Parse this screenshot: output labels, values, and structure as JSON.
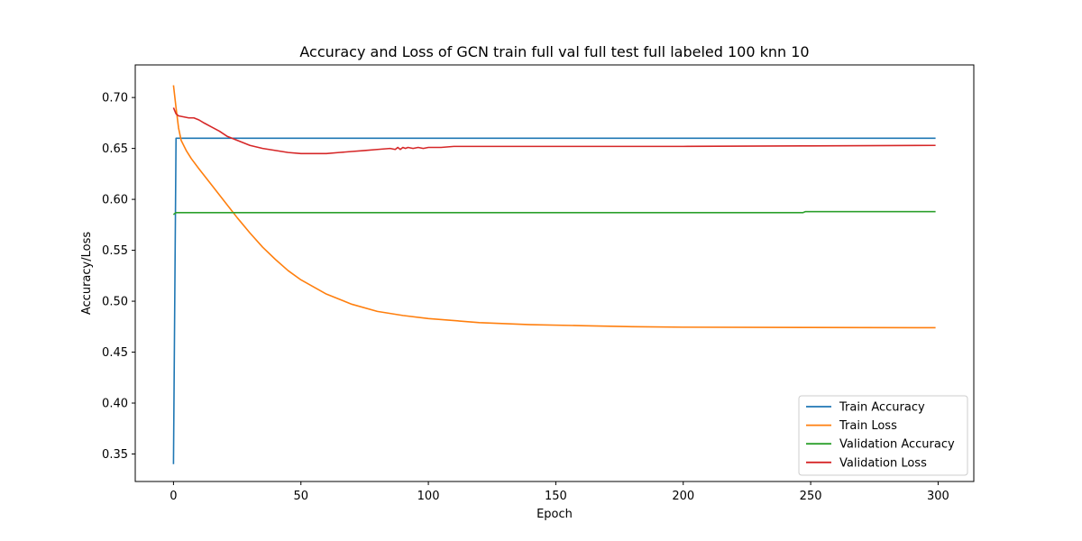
{
  "chart_data": {
    "type": "line",
    "title": "Accuracy and Loss of GCN train full val full test full labeled 100 knn 10",
    "xlabel": "Epoch",
    "ylabel": "Accuracy/Loss",
    "xlim": [
      -15,
      314
    ],
    "ylim": [
      0.323,
      0.732
    ],
    "xticks": [
      0,
      50,
      100,
      150,
      200,
      250,
      300
    ],
    "xtick_labels": [
      "0",
      "50",
      "100",
      "150",
      "200",
      "250",
      "300"
    ],
    "yticks": [
      0.35,
      0.4,
      0.45,
      0.5,
      0.55,
      0.6,
      0.65,
      0.7
    ],
    "ytick_labels": [
      "0.35",
      "0.40",
      "0.45",
      "0.50",
      "0.55",
      "0.60",
      "0.65",
      "0.70"
    ],
    "grid": false,
    "legend_position": "lower-right",
    "series": [
      {
        "name": "Train Accuracy",
        "color": "#1f77b4",
        "points": [
          [
            0,
            0.34
          ],
          [
            1,
            0.66
          ],
          [
            299,
            0.66
          ]
        ]
      },
      {
        "name": "Train Loss",
        "color": "#ff7f0e",
        "points": [
          [
            0,
            0.712
          ],
          [
            1,
            0.69
          ],
          [
            2,
            0.67
          ],
          [
            3,
            0.658
          ],
          [
            5,
            0.648
          ],
          [
            7,
            0.64
          ],
          [
            10,
            0.63
          ],
          [
            15,
            0.614
          ],
          [
            20,
            0.598
          ],
          [
            25,
            0.582
          ],
          [
            30,
            0.567
          ],
          [
            35,
            0.553
          ],
          [
            40,
            0.541
          ],
          [
            45,
            0.53
          ],
          [
            50,
            0.521
          ],
          [
            60,
            0.507
          ],
          [
            70,
            0.497
          ],
          [
            80,
            0.49
          ],
          [
            90,
            0.486
          ],
          [
            100,
            0.483
          ],
          [
            120,
            0.479
          ],
          [
            140,
            0.477
          ],
          [
            160,
            0.476
          ],
          [
            180,
            0.475
          ],
          [
            200,
            0.4745
          ],
          [
            250,
            0.4742
          ],
          [
            299,
            0.474
          ]
        ]
      },
      {
        "name": "Validation Accuracy",
        "color": "#2ca02c",
        "points": [
          [
            0,
            0.585
          ],
          [
            1,
            0.587
          ],
          [
            247,
            0.587
          ],
          [
            248,
            0.588
          ],
          [
            299,
            0.588
          ]
        ]
      },
      {
        "name": "Validation Loss",
        "color": "#d62728",
        "points": [
          [
            0,
            0.69
          ],
          [
            1,
            0.684
          ],
          [
            2,
            0.682
          ],
          [
            4,
            0.681
          ],
          [
            6,
            0.68
          ],
          [
            8,
            0.68
          ],
          [
            10,
            0.678
          ],
          [
            12,
            0.675
          ],
          [
            15,
            0.671
          ],
          [
            18,
            0.667
          ],
          [
            21,
            0.662
          ],
          [
            25,
            0.658
          ],
          [
            30,
            0.653
          ],
          [
            35,
            0.65
          ],
          [
            40,
            0.648
          ],
          [
            45,
            0.646
          ],
          [
            50,
            0.645
          ],
          [
            55,
            0.645
          ],
          [
            60,
            0.645
          ],
          [
            65,
            0.646
          ],
          [
            70,
            0.647
          ],
          [
            75,
            0.648
          ],
          [
            80,
            0.649
          ],
          [
            85,
            0.65
          ],
          [
            87,
            0.649
          ],
          [
            88,
            0.651
          ],
          [
            89,
            0.649
          ],
          [
            90,
            0.651
          ],
          [
            91,
            0.65
          ],
          [
            92,
            0.651
          ],
          [
            94,
            0.65
          ],
          [
            96,
            0.651
          ],
          [
            98,
            0.65
          ],
          [
            100,
            0.651
          ],
          [
            105,
            0.651
          ],
          [
            110,
            0.652
          ],
          [
            120,
            0.652
          ],
          [
            150,
            0.652
          ],
          [
            180,
            0.652
          ],
          [
            200,
            0.652
          ],
          [
            250,
            0.6525
          ],
          [
            299,
            0.653
          ]
        ]
      }
    ]
  }
}
